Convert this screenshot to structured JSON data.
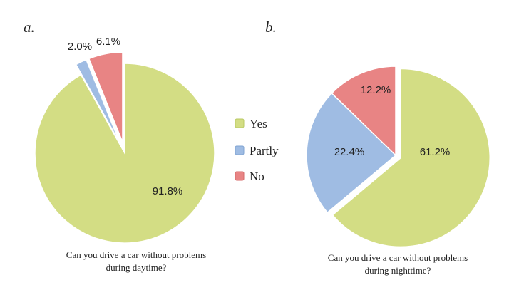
{
  "legend": {
    "items": [
      {
        "label": "Yes",
        "color": "#d3dd84",
        "edge": "#b8c962"
      },
      {
        "label": "Partly",
        "color": "#9fbce3",
        "edge": "#7fa3d2"
      },
      {
        "label": "No",
        "color": "#e88484",
        "edge": "#d46a6a"
      }
    ]
  },
  "chart_data": [
    {
      "type": "pie",
      "panel_label": "a.",
      "title_line1": "Can you drive a car without problems",
      "title_line2": "during daytime?",
      "categories": [
        "Yes",
        "Partly",
        "No"
      ],
      "values": [
        91.8,
        2.0,
        6.1
      ],
      "labels": [
        "91.8%",
        "2.0%",
        "6.1%"
      ],
      "exploded": [
        "Partly",
        "No"
      ]
    },
    {
      "type": "pie",
      "panel_label": "b.",
      "title_line1": "Can you drive a car without problems",
      "title_line2": "during nighttime?",
      "categories": [
        "Yes",
        "Partly",
        "No"
      ],
      "values": [
        61.2,
        22.4,
        12.2
      ],
      "labels": [
        "61.2%",
        "22.4%",
        "12.2%"
      ],
      "exploded": [
        "Yes"
      ]
    }
  ]
}
